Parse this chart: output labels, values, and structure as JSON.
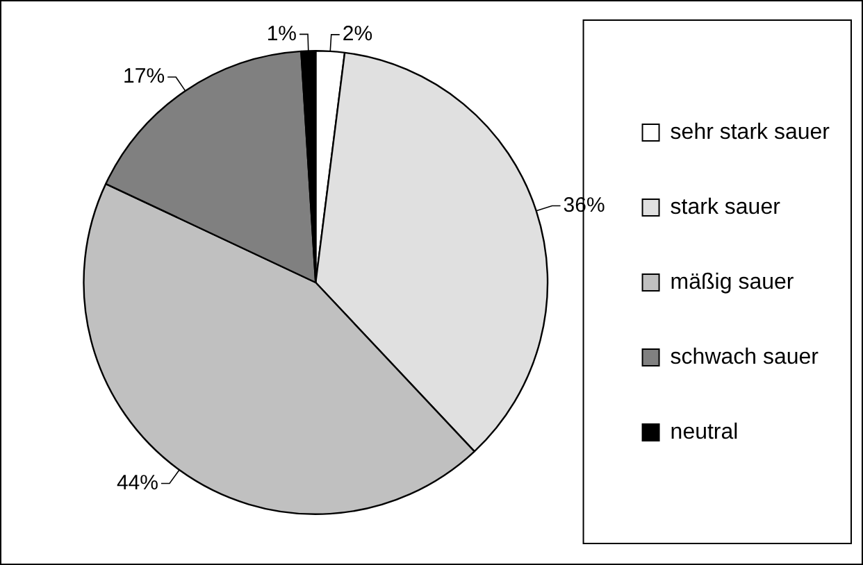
{
  "chart_data": {
    "type": "pie",
    "categories": [
      "sehr stark sauer",
      "stark sauer",
      "mäßig sauer",
      "schwach sauer",
      "neutral"
    ],
    "values": [
      2,
      36,
      44,
      17,
      1
    ],
    "colors": [
      "#ffffff",
      "#e0e0e0",
      "#c0c0c0",
      "#808080",
      "#000000"
    ],
    "value_labels": [
      "2%",
      "36%",
      "44%",
      "17%",
      "1%"
    ],
    "legend": "right"
  }
}
